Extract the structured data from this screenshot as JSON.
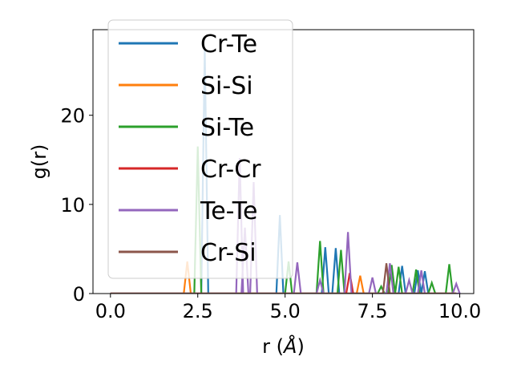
{
  "chart_data": {
    "type": "line",
    "xlabel_main": "r (",
    "xlabel_unit": "Å",
    "xlabel_close": ")",
    "ylabel": "g(r)",
    "xlim": [
      -0.5,
      10.4
    ],
    "ylim": [
      0,
      29.6
    ],
    "xticks": [
      0.0,
      2.5,
      5.0,
      7.5,
      10.0
    ],
    "xtick_labels": [
      "0.0",
      "2.5",
      "5.0",
      "7.5",
      "10.0"
    ],
    "yticks": [
      0,
      10,
      20
    ],
    "ytick_labels": [
      "0",
      "10",
      "20"
    ],
    "grid": false,
    "legend_placement": "top-left, overlapping plot",
    "series": [
      {
        "name": "Cr-Te",
        "color": "#1f77b4",
        "peaks": [
          [
            2.7,
            27.5
          ],
          [
            4.85,
            8.8
          ],
          [
            6.15,
            5.2
          ],
          [
            6.45,
            5.1
          ],
          [
            8.35,
            3.1
          ],
          [
            8.8,
            2.6
          ],
          [
            9.0,
            2.5
          ]
        ]
      },
      {
        "name": "Si-Si",
        "color": "#ff7f0e",
        "peaks": [
          [
            2.2,
            3.6
          ],
          [
            7.15,
            2.0
          ]
        ]
      },
      {
        "name": "Si-Te",
        "color": "#2ca02c",
        "peaks": [
          [
            2.5,
            16.5
          ],
          [
            5.1,
            3.6
          ],
          [
            6.0,
            5.9
          ],
          [
            6.6,
            4.9
          ],
          [
            7.75,
            0.8
          ],
          [
            8.05,
            3.2
          ],
          [
            8.25,
            3.0
          ],
          [
            8.75,
            2.7
          ],
          [
            9.2,
            1.2
          ],
          [
            9.7,
            3.3
          ]
        ]
      },
      {
        "name": "Cr-Cr",
        "color": "#d62728",
        "peaks": [
          [
            6.85,
            2.3
          ]
        ]
      },
      {
        "name": "Te-Te",
        "color": "#9467bd",
        "peaks": [
          [
            3.7,
            15.2
          ],
          [
            3.85,
            7.4
          ],
          [
            4.1,
            12.5
          ],
          [
            5.35,
            3.5
          ],
          [
            6.0,
            1.5
          ],
          [
            6.8,
            6.9
          ],
          [
            7.5,
            1.8
          ],
          [
            8.0,
            3.4
          ],
          [
            8.55,
            1.5
          ],
          [
            8.9,
            2.6
          ],
          [
            9.9,
            1.1
          ]
        ]
      },
      {
        "name": "Cr-Si",
        "color": "#8c564b",
        "peaks": [
          [
            7.9,
            3.4
          ]
        ]
      }
    ]
  }
}
